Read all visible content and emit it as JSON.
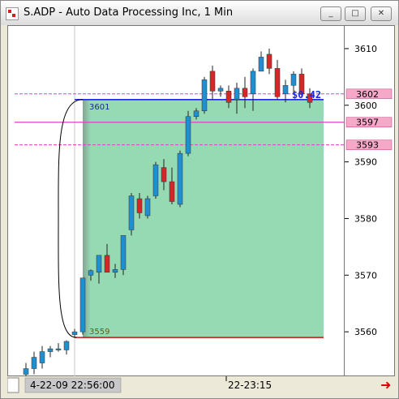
{
  "window": {
    "title": "S.ADP - Auto Data Processing Inc, 1 Min",
    "controls": {
      "minimize": "_",
      "maximize": "□",
      "close": "✕"
    }
  },
  "chart_data": {
    "type": "candlestick",
    "symbol": "S.ADP",
    "interval": "1 Min",
    "ylim": [
      3552,
      3614
    ],
    "y_ticks": [
      3560,
      3570,
      3580,
      3590,
      3600,
      3610
    ],
    "x_labels": [
      "4-22-09 22:56:00",
      "22-23:15"
    ],
    "candles": [
      {
        "o": 3552.5,
        "h": 3554.5,
        "l": 3551.5,
        "c": 3553.5
      },
      {
        "o": 3553.5,
        "h": 3556.5,
        "l": 3552.5,
        "c": 3555.5
      },
      {
        "o": 3554.5,
        "h": 3557.5,
        "l": 3553.5,
        "c": 3556.5
      },
      {
        "o": 3556.5,
        "h": 3557.5,
        "l": 3555.5,
        "c": 3557.0
      },
      {
        "o": 3557.0,
        "h": 3558.0,
        "l": 3556.5,
        "c": 3557.0
      },
      {
        "o": 3556.8,
        "h": 3558.5,
        "l": 3556.0,
        "c": 3558.3
      },
      {
        "o": 3559.5,
        "h": 3560.5,
        "l": 3559.0,
        "c": 3560.0
      },
      {
        "o": 3560.0,
        "h": 3569.5,
        "l": 3559.5,
        "c": 3569.5
      },
      {
        "o": 3570.0,
        "h": 3571.0,
        "l": 3569.0,
        "c": 3570.8
      },
      {
        "o": 3570.5,
        "h": 3573.5,
        "l": 3568.5,
        "c": 3573.5
      },
      {
        "o": 3573.5,
        "h": 3575.5,
        "l": 3570.5,
        "c": 3570.5
      },
      {
        "o": 3570.5,
        "h": 3572.0,
        "l": 3569.5,
        "c": 3571.0
      },
      {
        "o": 3571.0,
        "h": 3577.0,
        "l": 3570.0,
        "c": 3577.0
      },
      {
        "o": 3578.0,
        "h": 3584.5,
        "l": 3577.0,
        "c": 3584.0
      },
      {
        "o": 3583.5,
        "h": 3584.5,
        "l": 3580.0,
        "c": 3581.0
      },
      {
        "o": 3580.5,
        "h": 3584.0,
        "l": 3580.0,
        "c": 3583.5
      },
      {
        "o": 3584.0,
        "h": 3590.0,
        "l": 3583.5,
        "c": 3589.5
      },
      {
        "o": 3589.0,
        "h": 3590.5,
        "l": 3585.0,
        "c": 3586.5
      },
      {
        "o": 3586.5,
        "h": 3589.0,
        "l": 3582.5,
        "c": 3583.0
      },
      {
        "o": 3582.5,
        "h": 3592.0,
        "l": 3582.0,
        "c": 3591.5
      },
      {
        "o": 3591.5,
        "h": 3599.0,
        "l": 3591.0,
        "c": 3598.0
      },
      {
        "o": 3598.0,
        "h": 3599.5,
        "l": 3597.5,
        "c": 3599.0
      },
      {
        "o": 3599.0,
        "h": 3605.0,
        "l": 3598.5,
        "c": 3604.5
      },
      {
        "o": 3606.0,
        "h": 3607.0,
        "l": 3601.0,
        "c": 3602.5
      },
      {
        "o": 3602.5,
        "h": 3603.5,
        "l": 3601.5,
        "c": 3603.0
      },
      {
        "o": 3602.5,
        "h": 3603.5,
        "l": 3599.5,
        "c": 3600.5
      },
      {
        "o": 3601.0,
        "h": 3604.0,
        "l": 3598.5,
        "c": 3603.0
      },
      {
        "o": 3603.0,
        "h": 3605.0,
        "l": 3599.5,
        "c": 3601.5
      },
      {
        "o": 3602.0,
        "h": 3606.5,
        "l": 3599.0,
        "c": 3606.0
      },
      {
        "o": 3606.0,
        "h": 3609.5,
        "l": 3606.0,
        "c": 3608.5
      },
      {
        "o": 3609.0,
        "h": 3610.0,
        "l": 3605.5,
        "c": 3606.5
      },
      {
        "o": 3606.5,
        "h": 3608.0,
        "l": 3601.0,
        "c": 3601.5
      },
      {
        "o": 3602.0,
        "h": 3604.5,
        "l": 3600.5,
        "c": 3603.5
      },
      {
        "o": 3603.5,
        "h": 3606.0,
        "l": 3602.0,
        "c": 3605.5
      },
      {
        "o": 3605.5,
        "h": 3606.5,
        "l": 3601.5,
        "c": 3602.0
      },
      {
        "o": 3602.0,
        "h": 3603.0,
        "l": 3599.5,
        "c": 3600.5
      }
    ],
    "levels": [
      {
        "value": 3602,
        "label": "3602",
        "style": "magenta-dashed"
      },
      {
        "value": 3597,
        "label": "3597",
        "style": "magenta-solid"
      },
      {
        "value": 3593,
        "label": "3593",
        "style": "magenta-dashed"
      }
    ],
    "measure": {
      "low": 3559,
      "high": 3601,
      "low_label": "3559",
      "high_label": "3601",
      "change_label": "$0.42",
      "fill_color": "#90d8b0"
    },
    "colors": {
      "up": "#1f8fd0",
      "down": "#d42828",
      "level": "#e040c0",
      "top_line": "#1a2adc",
      "bottom_line": "#cc1010",
      "label_bg": "#f6a8c8"
    }
  }
}
